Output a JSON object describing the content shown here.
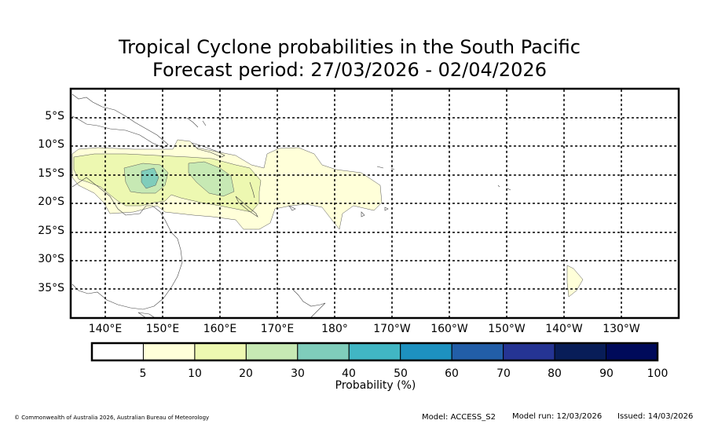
{
  "title": {
    "line1": "Tropical Cyclone probabilities in the South Pacific",
    "line2": "Forecast period: 27/03/2026 - 02/04/2026"
  },
  "map": {
    "lat_labels": [
      "5°S",
      "10°S",
      "15°S",
      "20°S",
      "25°S",
      "30°S",
      "35°S"
    ],
    "lon_labels": [
      "140°E",
      "150°E",
      "160°E",
      "170°E",
      "180°",
      "170°W",
      "160°W",
      "150°W",
      "140°W",
      "130°W"
    ]
  },
  "colorbar": {
    "title": "Probability (%)",
    "labels": [
      "5",
      "10",
      "20",
      "30",
      "40",
      "50",
      "60",
      "70",
      "80",
      "90",
      "100"
    ],
    "colors": [
      "#ffffff",
      "#ffffd9",
      "#edf8b1",
      "#c7e9b4",
      "#7fcdbb",
      "#41b6c4",
      "#1d91c0",
      "#225ea8",
      "#253494",
      "#081d58",
      "#000a5a"
    ]
  },
  "footer": {
    "copyright": "© Commonwealth of Australia 2026, Australian Bureau of Meteorology",
    "model": "Model: ACCESS_S2",
    "model_run": "Model run: 12/03/2026",
    "issued": "Issued: 14/03/2026"
  }
}
